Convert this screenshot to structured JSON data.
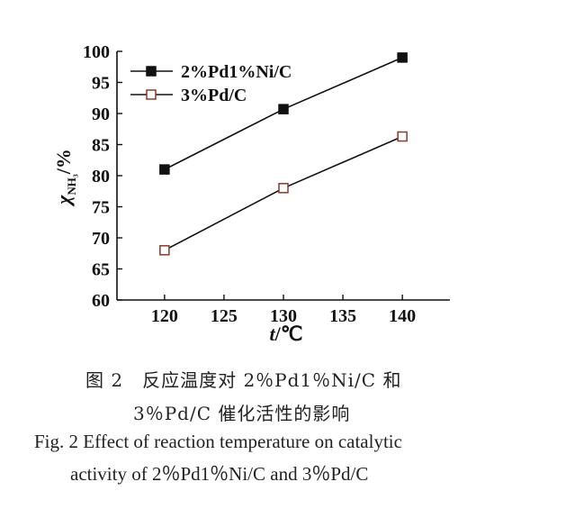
{
  "chart_data": {
    "type": "line",
    "xlabel": "t/℃",
    "ylabel_main": "χ",
    "ylabel_sub": "NH₃",
    "ylabel_unit": "/%",
    "xlim": [
      116,
      144
    ],
    "ylim": [
      60,
      100
    ],
    "xticks": [
      120,
      125,
      130,
      135,
      140
    ],
    "yticks": [
      60,
      65,
      70,
      75,
      80,
      85,
      90,
      95,
      100
    ],
    "grid": false,
    "legend_position": "top-left",
    "series": [
      {
        "name": "2%Pd1%Ni/C",
        "marker": "filled-square",
        "color": "#111111",
        "x": [
          120,
          130,
          140
        ],
        "y": [
          81,
          90.7,
          99
        ]
      },
      {
        "name": "3%Pd/C",
        "marker": "open-square",
        "color": "#8a3a2a",
        "x": [
          120,
          130,
          140
        ],
        "y": [
          68,
          78,
          86.3
        ]
      }
    ]
  },
  "caption": {
    "cn_line1": "图 2　反应温度对 2％Pd1％Ni/C 和",
    "cn_line2": "3％Pd/C 催化活性的影响",
    "en_line1": "Fig. 2   Effect of reaction temperature on catalytic",
    "en_line2": "activity of 2％Pd1％Ni/C and 3％Pd/C"
  }
}
